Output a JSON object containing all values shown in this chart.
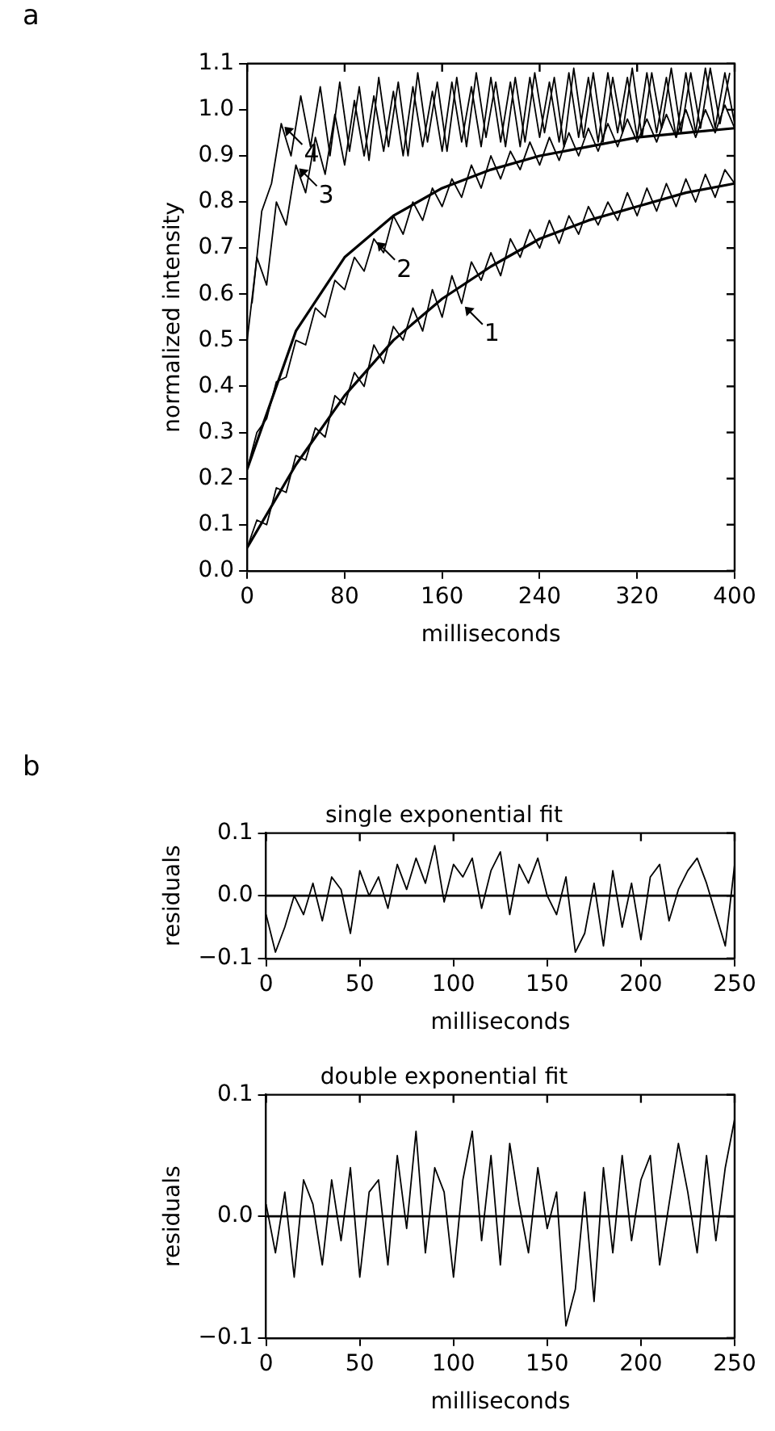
{
  "chart_data": [
    {
      "type": "line",
      "annotations": [
        "a",
        {
          "text": "1",
          "x": 176,
          "y": 0.58
        },
        {
          "text": "2",
          "x": 104,
          "y": 0.72
        },
        {
          "text": "3",
          "x": 40,
          "y": 0.88
        },
        {
          "text": "4",
          "x": 28,
          "y": 0.97
        }
      ],
      "xlabel": "milliseconds",
      "ylabel": "normalized intensity",
      "xlim": [
        0,
        400
      ],
      "xticks": [
        0,
        80,
        160,
        240,
        320,
        400
      ],
      "ylim": [
        0,
        1.1
      ],
      "yticks": [
        {
          "value": 0,
          "label": "0.0"
        },
        0.1,
        0.2,
        0.3,
        0.4,
        0.5,
        0.6,
        0.7,
        0.8,
        0.9,
        {
          "value": 1,
          "label": "1.0"
        },
        1.1
      ],
      "grid": false,
      "legend": false,
      "marker": "none",
      "line_style": "solid",
      "series": [
        {
          "color": "#000000",
          "x": [
            0,
            8,
            16,
            24,
            32,
            40,
            48,
            56,
            64,
            72,
            80,
            88,
            96,
            104,
            112,
            120,
            128,
            136,
            144,
            152,
            160,
            168,
            176,
            184,
            192,
            200,
            208,
            216,
            224,
            232,
            240,
            248,
            256,
            264,
            272,
            280,
            288,
            296,
            304,
            312,
            320,
            328,
            336,
            344,
            352,
            360,
            368,
            376,
            384,
            392,
            400
          ],
          "values": [
            0.05,
            0.11,
            0.1,
            0.18,
            0.17,
            0.25,
            0.24,
            0.31,
            0.29,
            0.38,
            0.36,
            0.43,
            0.4,
            0.49,
            0.45,
            0.53,
            0.5,
            0.57,
            0.52,
            0.61,
            0.55,
            0.64,
            0.58,
            0.67,
            0.63,
            0.69,
            0.64,
            0.72,
            0.68,
            0.74,
            0.7,
            0.76,
            0.71,
            0.77,
            0.73,
            0.79,
            0.75,
            0.8,
            0.76,
            0.82,
            0.77,
            0.83,
            0.78,
            0.84,
            0.79,
            0.85,
            0.8,
            0.86,
            0.81,
            0.87,
            0.84
          ]
        },
        {
          "color": "#000000",
          "x": [
            0,
            8,
            16,
            24,
            32,
            40,
            48,
            56,
            64,
            72,
            80,
            88,
            96,
            104,
            112,
            120,
            128,
            136,
            144,
            152,
            160,
            168,
            176,
            184,
            192,
            200,
            208,
            216,
            224,
            232,
            240,
            248,
            256,
            264,
            272,
            280,
            288,
            296,
            304,
            312,
            320,
            328,
            336,
            344,
            352,
            360,
            368,
            376,
            384,
            392,
            400
          ],
          "values": [
            0.22,
            0.3,
            0.33,
            0.41,
            0.42,
            0.5,
            0.49,
            0.57,
            0.55,
            0.63,
            0.61,
            0.68,
            0.65,
            0.72,
            0.69,
            0.77,
            0.73,
            0.8,
            0.76,
            0.83,
            0.79,
            0.85,
            0.81,
            0.88,
            0.83,
            0.9,
            0.85,
            0.91,
            0.87,
            0.93,
            0.88,
            0.94,
            0.89,
            0.95,
            0.9,
            0.96,
            0.91,
            0.97,
            0.92,
            0.98,
            0.93,
            0.98,
            0.93,
            0.99,
            0.94,
            1.0,
            0.94,
            1.0,
            0.95,
            1.01,
            0.96
          ]
        },
        {
          "color": "#000000",
          "x": [
            0,
            8,
            16,
            24,
            32,
            40,
            48,
            56,
            64,
            72,
            80,
            88,
            96,
            104,
            112,
            120,
            128,
            136,
            144,
            152,
            160,
            168,
            176,
            184,
            192,
            200,
            208,
            216,
            224,
            232,
            240,
            248,
            256,
            264,
            272,
            280,
            288,
            296,
            304,
            312,
            320,
            328,
            336,
            344,
            352,
            360,
            368,
            376,
            384,
            392,
            400
          ],
          "values": [
            0.5,
            0.68,
            0.62,
            0.8,
            0.75,
            0.88,
            0.82,
            0.94,
            0.86,
            0.99,
            0.88,
            1.02,
            0.9,
            1.03,
            0.91,
            1.04,
            0.9,
            1.05,
            0.92,
            1.04,
            0.91,
            1.06,
            0.93,
            1.05,
            0.92,
            1.07,
            0.93,
            1.06,
            0.92,
            1.07,
            0.94,
            1.06,
            0.93,
            1.08,
            0.94,
            1.07,
            0.93,
            1.08,
            0.95,
            1.07,
            0.94,
            1.08,
            0.95,
            1.07,
            0.94,
            1.08,
            0.95,
            1.09,
            0.96,
            1.08,
            0.97
          ]
        },
        {
          "color": "#000000",
          "x": [
            4,
            12,
            20,
            28,
            36,
            44,
            52,
            60,
            68,
            76,
            84,
            92,
            100,
            108,
            116,
            124,
            132,
            140,
            148,
            156,
            164,
            172,
            180,
            188,
            196,
            204,
            212,
            220,
            228,
            236,
            244,
            252,
            260,
            268,
            276,
            284,
            292,
            300,
            308,
            316,
            324,
            332,
            340,
            348,
            356,
            364,
            372,
            380,
            388,
            396
          ],
          "values": [
            0.58,
            0.78,
            0.84,
            0.97,
            0.9,
            1.03,
            0.92,
            1.05,
            0.9,
            1.06,
            0.91,
            1.05,
            0.89,
            1.07,
            0.92,
            1.06,
            0.9,
            1.08,
            0.93,
            1.06,
            0.91,
            1.07,
            0.92,
            1.08,
            0.94,
            1.06,
            0.92,
            1.07,
            0.93,
            1.08,
            0.95,
            1.07,
            0.92,
            1.09,
            0.94,
            1.08,
            0.93,
            1.07,
            0.95,
            1.09,
            0.94,
            1.08,
            0.96,
            1.09,
            0.95,
            1.08,
            0.96,
            1.09,
            0.97,
            1.08
          ]
        },
        {
          "type": "line",
          "color": "#000000",
          "x": [
            0,
            40,
            80,
            120,
            160,
            200,
            240,
            280,
            320,
            360,
            400
          ],
          "values": [
            0.05,
            0.23,
            0.38,
            0.5,
            0.59,
            0.66,
            0.72,
            0.76,
            0.79,
            0.82,
            0.84
          ]
        },
        {
          "type": "line",
          "color": "#000000",
          "x": [
            0,
            40,
            80,
            120,
            160,
            200,
            240,
            280,
            320,
            360,
            400
          ],
          "values": [
            0.22,
            0.52,
            0.68,
            0.77,
            0.83,
            0.87,
            0.9,
            0.92,
            0.94,
            0.95,
            0.96
          ]
        }
      ]
    },
    {
      "type": "line",
      "annotations": [
        "b"
      ],
      "title": "single exponential fit",
      "xlabel": "milliseconds",
      "ylabel": "residuals",
      "xlim": [
        0,
        250
      ],
      "xticks": [
        0,
        50,
        100,
        150,
        200,
        250
      ],
      "ylim": [
        -0.1,
        0.1
      ],
      "yticks": [
        {
          "value": -0.1,
          "label": "−0.1"
        },
        {
          "value": 0,
          "label": "0.0"
        },
        0.1
      ],
      "grid": false,
      "legend": false,
      "marker": "none",
      "line_style": "solid",
      "ref_lines": [
        {
          "axis": "y",
          "value": 0
        }
      ],
      "series": [
        {
          "color": "#000000",
          "x": [
            0,
            5,
            10,
            15,
            20,
            25,
            30,
            35,
            40,
            45,
            50,
            55,
            60,
            65,
            70,
            75,
            80,
            85,
            90,
            95,
            100,
            105,
            110,
            115,
            120,
            125,
            130,
            135,
            140,
            145,
            150,
            155,
            160,
            165,
            170,
            175,
            180,
            185,
            190,
            195,
            200,
            205,
            210,
            215,
            220,
            225,
            230,
            235,
            240,
            245,
            250
          ],
          "values": [
            -0.03,
            -0.09,
            -0.05,
            0.0,
            -0.03,
            0.02,
            -0.04,
            0.03,
            0.01,
            -0.06,
            0.04,
            0.0,
            0.03,
            -0.02,
            0.05,
            0.01,
            0.06,
            0.02,
            0.08,
            -0.01,
            0.05,
            0.03,
            0.06,
            -0.02,
            0.04,
            0.07,
            -0.03,
            0.05,
            0.02,
            0.06,
            0.0,
            -0.03,
            0.03,
            -0.09,
            -0.06,
            0.02,
            -0.08,
            0.04,
            -0.05,
            0.02,
            -0.07,
            0.03,
            0.05,
            -0.04,
            0.01,
            0.04,
            0.06,
            0.02,
            -0.03,
            -0.08,
            0.05
          ]
        }
      ]
    },
    {
      "type": "line",
      "title": "double exponential fit",
      "xlabel": "milliseconds",
      "ylabel": "residuals",
      "xlim": [
        0,
        250
      ],
      "xticks": [
        0,
        50,
        100,
        150,
        200,
        250
      ],
      "ylim": [
        -0.1,
        0.1
      ],
      "yticks": [
        {
          "value": -0.1,
          "label": "−0.1"
        },
        {
          "value": 0,
          "label": "0.0"
        },
        0.1
      ],
      "grid": false,
      "legend": false,
      "marker": "none",
      "line_style": "solid",
      "ref_lines": [
        {
          "axis": "y",
          "value": 0
        }
      ],
      "series": [
        {
          "color": "#000000",
          "x": [
            0,
            5,
            10,
            15,
            20,
            25,
            30,
            35,
            40,
            45,
            50,
            55,
            60,
            65,
            70,
            75,
            80,
            85,
            90,
            95,
            100,
            105,
            110,
            115,
            120,
            125,
            130,
            135,
            140,
            145,
            150,
            155,
            160,
            165,
            170,
            175,
            180,
            185,
            190,
            195,
            200,
            205,
            210,
            215,
            220,
            225,
            230,
            235,
            240,
            245,
            250
          ],
          "values": [
            0.01,
            -0.03,
            0.02,
            -0.05,
            0.03,
            0.01,
            -0.04,
            0.03,
            -0.02,
            0.04,
            -0.05,
            0.02,
            0.03,
            -0.04,
            0.05,
            -0.01,
            0.07,
            -0.03,
            0.04,
            0.02,
            -0.05,
            0.03,
            0.07,
            -0.02,
            0.05,
            -0.04,
            0.06,
            0.01,
            -0.03,
            0.04,
            -0.01,
            0.02,
            -0.09,
            -0.06,
            0.02,
            -0.07,
            0.04,
            -0.03,
            0.05,
            -0.02,
            0.03,
            0.05,
            -0.04,
            0.01,
            0.06,
            0.02,
            -0.03,
            0.05,
            -0.02,
            0.04,
            0.08
          ]
        }
      ]
    }
  ]
}
